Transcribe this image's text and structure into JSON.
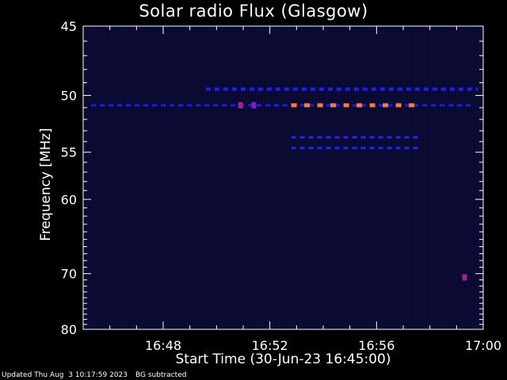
{
  "chart_data": {
    "type": "heatmap",
    "title": "Solar radio Flux (Glasgow)",
    "xlabel": "Start Time (30-Jun-23 16:45:00)",
    "ylabel": "Frequency [MHz]",
    "xlim_minutes": [
      0,
      15
    ],
    "ylim_mhz": [
      45,
      80
    ],
    "y_inverted": true,
    "y_ticks": [
      45,
      50,
      55,
      60,
      70,
      80
    ],
    "x_ticks": [
      {
        "minute": 3,
        "label": "16:48"
      },
      {
        "minute": 7,
        "label": "16:52"
      },
      {
        "minute": 11,
        "label": "16:56"
      },
      {
        "minute": 15,
        "label": "17:00"
      }
    ],
    "background_color": "#0a0a2e",
    "features": [
      {
        "type": "band",
        "frequency_mhz": 50.8,
        "start_min": 0.3,
        "end_min": 14.6,
        "color": "#1a1aff",
        "level": "medium"
      },
      {
        "type": "band",
        "frequency_mhz": 50.8,
        "start_min": 7.8,
        "end_min": 12.6,
        "color": "#ff7a3a",
        "level": "high"
      },
      {
        "type": "band",
        "frequency_mhz": 53.6,
        "start_min": 7.8,
        "end_min": 12.6,
        "color": "#2222ff",
        "level": "medium"
      },
      {
        "type": "band",
        "frequency_mhz": 54.6,
        "start_min": 7.8,
        "end_min": 12.6,
        "color": "#2222ff",
        "level": "medium"
      },
      {
        "type": "band",
        "frequency_mhz": 49.5,
        "start_min": 4.6,
        "end_min": 14.8,
        "color": "#1e1eff",
        "level": "low"
      },
      {
        "type": "spot",
        "frequency_mhz": 50.8,
        "minute": 5.9,
        "color": "#a0209a"
      },
      {
        "type": "spot",
        "frequency_mhz": 50.8,
        "minute": 6.4,
        "color": "#7a20c0"
      },
      {
        "type": "spot",
        "frequency_mhz": 70.6,
        "minute": 14.3,
        "color": "#a0209a"
      }
    ]
  },
  "footer": {
    "updated": "Updated Thu Aug  3 10:17:59 2023",
    "note": "BG subtracted"
  }
}
